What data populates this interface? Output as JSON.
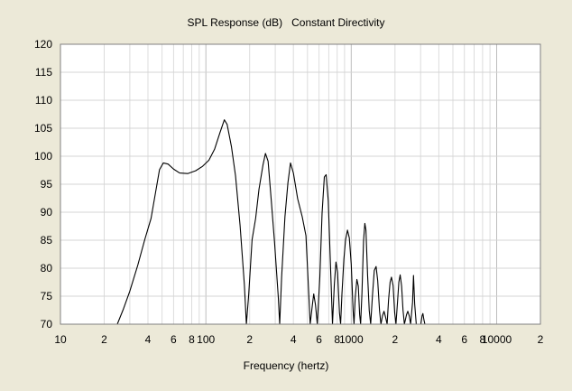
{
  "chart_data": {
    "type": "line",
    "title": "SPL Response (dB)   Constant Directivity",
    "xlabel": "Frequency (hertz)",
    "ylabel": "",
    "x_scale": "log",
    "xlim": [
      10,
      20000
    ],
    "ylim": [
      70,
      120
    ],
    "grid": true,
    "x_tick_labels": [
      {
        "value": 10,
        "label": "10"
      },
      {
        "value": 20,
        "label": "2"
      },
      {
        "value": 40,
        "label": "4"
      },
      {
        "value": 60,
        "label": "6"
      },
      {
        "value": 80,
        "label": "8"
      },
      {
        "value": 100,
        "label": "100"
      },
      {
        "value": 200,
        "label": "2"
      },
      {
        "value": 400,
        "label": "4"
      },
      {
        "value": 600,
        "label": "6"
      },
      {
        "value": 800,
        "label": "8"
      },
      {
        "value": 1000,
        "label": "1000"
      },
      {
        "value": 2000,
        "label": "2"
      },
      {
        "value": 4000,
        "label": "4"
      },
      {
        "value": 6000,
        "label": "6"
      },
      {
        "value": 8000,
        "label": "8"
      },
      {
        "value": 10000,
        "label": "10000"
      },
      {
        "value": 20000,
        "label": "2"
      }
    ],
    "y_tick_labels": [
      "70",
      "75",
      "80",
      "85",
      "90",
      "95",
      "100",
      "105",
      "110",
      "115",
      "120"
    ],
    "series": [
      {
        "color": "#000000",
        "points": [
          [
            24.6,
            70
          ],
          [
            27,
            72.6
          ],
          [
            30,
            75.9
          ],
          [
            34,
            80.5
          ],
          [
            38,
            85.1
          ],
          [
            42,
            88.9
          ],
          [
            45,
            93.4
          ],
          [
            48,
            97.6
          ],
          [
            51,
            98.8
          ],
          [
            55,
            98.6
          ],
          [
            60,
            97.7
          ],
          [
            66,
            97.0
          ],
          [
            75,
            96.9
          ],
          [
            85,
            97.4
          ],
          [
            95,
            98.2
          ],
          [
            105,
            99.3
          ],
          [
            115,
            101.3
          ],
          [
            125,
            104.2
          ],
          [
            134,
            106.5
          ],
          [
            140,
            105.7
          ],
          [
            150,
            101.7
          ],
          [
            160,
            96.5
          ],
          [
            172,
            87.6
          ],
          [
            184,
            77.1
          ],
          [
            190,
            70
          ],
          [
            197,
            75.2
          ],
          [
            208,
            85.1
          ],
          [
            220,
            88.9
          ],
          [
            232,
            94.1
          ],
          [
            247,
            98.4
          ],
          [
            257,
            100.5
          ],
          [
            268,
            99.1
          ],
          [
            282,
            92.0
          ],
          [
            297,
            84.5
          ],
          [
            315,
            74.8
          ],
          [
            322,
            70
          ],
          [
            332,
            78.4
          ],
          [
            350,
            89.2
          ],
          [
            367,
            95.3
          ],
          [
            382,
            98.8
          ],
          [
            400,
            97.0
          ],
          [
            428,
            92.4
          ],
          [
            460,
            89.2
          ],
          [
            488,
            85.8
          ],
          [
            505,
            77.8
          ],
          [
            522,
            70
          ],
          [
            540,
            73.4
          ],
          [
            552,
            75.4
          ],
          [
            568,
            73.4
          ],
          [
            584,
            70
          ],
          [
            608,
            78.4
          ],
          [
            630,
            89.8
          ],
          [
            653,
            96.3
          ],
          [
            672,
            96.7
          ],
          [
            695,
            92.0
          ],
          [
            712,
            84.0
          ],
          [
            728,
            76.8
          ],
          [
            743,
            70
          ],
          [
            765,
            77.1
          ],
          [
            785,
            81.1
          ],
          [
            805,
            79.3
          ],
          [
            830,
            72.0
          ],
          [
            845,
            70
          ],
          [
            863,
            75.4
          ],
          [
            890,
            81.6
          ],
          [
            914,
            85.1
          ],
          [
            942,
            86.8
          ],
          [
            970,
            85.4
          ],
          [
            1000,
            80.7
          ],
          [
            1030,
            72.4
          ],
          [
            1045,
            70
          ],
          [
            1065,
            74.8
          ],
          [
            1093,
            78.0
          ],
          [
            1118,
            76.8
          ],
          [
            1142,
            71.7
          ],
          [
            1160,
            70
          ],
          [
            1185,
            75.6
          ],
          [
            1215,
            84.9
          ],
          [
            1240,
            88.0
          ],
          [
            1262,
            86.8
          ],
          [
            1295,
            78.8
          ],
          [
            1330,
            72.4
          ],
          [
            1360,
            70
          ],
          [
            1400,
            75.2
          ],
          [
            1440,
            79.6
          ],
          [
            1482,
            80.3
          ],
          [
            1520,
            77.8
          ],
          [
            1565,
            72.4
          ],
          [
            1600,
            70
          ],
          [
            1640,
            71.5
          ],
          [
            1680,
            72.3
          ],
          [
            1720,
            71.3
          ],
          [
            1765,
            70
          ],
          [
            1805,
            74.3
          ],
          [
            1850,
            77.5
          ],
          [
            1890,
            78.4
          ],
          [
            1940,
            76.9
          ],
          [
            1990,
            72.0
          ],
          [
            2030,
            70
          ],
          [
            2080,
            73.9
          ],
          [
            2125,
            77.5
          ],
          [
            2170,
            78.8
          ],
          [
            2220,
            76.8
          ],
          [
            2270,
            72.5
          ],
          [
            2320,
            70
          ],
          [
            2400,
            71.7
          ],
          [
            2450,
            72.3
          ],
          [
            2510,
            71.4
          ],
          [
            2560,
            70
          ],
          [
            2640,
            73.9
          ],
          [
            2680,
            78.7
          ],
          [
            2730,
            73.6
          ],
          [
            2800,
            70
          ],
          [
            3010,
            70
          ],
          [
            3070,
            71.5
          ],
          [
            3110,
            71.9
          ],
          [
            3160,
            70.8
          ],
          [
            3210,
            70
          ]
        ]
      }
    ]
  }
}
